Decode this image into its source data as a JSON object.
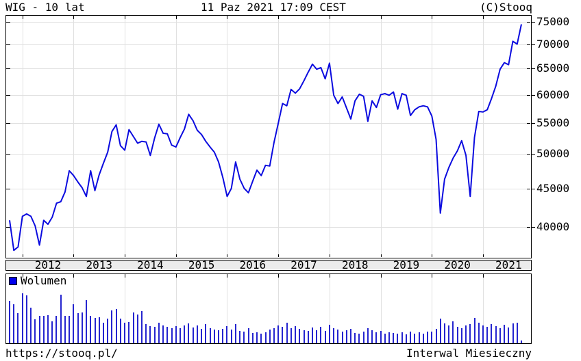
{
  "header": {
    "title": "WIG - 10 lat",
    "datetime": "11 Paz 2021 17:09 CEST",
    "copyright": "(C)Stooq"
  },
  "footer": {
    "url": "https://stooq.pl/",
    "interval": "Interwal Miesieczny"
  },
  "colors": {
    "line": "#0b0bdf",
    "bar": "#2424cf",
    "grid": "#e0e0e0",
    "strip_bg": "#ebebeb",
    "legend_square": "#0000ee",
    "border": "#000000"
  },
  "chart_data": {
    "type": "line",
    "title": "WIG - 10 lat",
    "subtitle": "11 Paz 2021 17:09 CEST",
    "y_scale": "log",
    "ylabel": "",
    "xlabel": "",
    "y_ticks": [
      75000,
      70000,
      65000,
      60000,
      55000,
      50000,
      45000,
      40000
    ],
    "x_years": [
      2012,
      2013,
      2014,
      2015,
      2016,
      2017,
      2018,
      2019,
      2020,
      2021
    ],
    "series_name": "WIG",
    "start_month": "2011-10",
    "interval": "monthly",
    "values": [
      40800,
      37200,
      37600,
      41300,
      41600,
      41300,
      40100,
      37800,
      40800,
      40300,
      41200,
      43000,
      43200,
      44500,
      47500,
      46800,
      45900,
      45100,
      43900,
      47500,
      44700,
      46900,
      48600,
      50300,
      53600,
      54700,
      51300,
      50600,
      53900,
      52800,
      51700,
      52000,
      51900,
      49800,
      52500,
      54800,
      53300,
      53200,
      51400,
      51100,
      52600,
      54000,
      56500,
      55400,
      53800,
      53100,
      52000,
      51100,
      50300,
      48800,
      46500,
      43900,
      45000,
      48800,
      46300,
      45000,
      44400,
      46000,
      47600,
      46800,
      48300,
      48200,
      51800,
      55000,
      58400,
      58000,
      61000,
      60300,
      61100,
      62600,
      64300,
      65900,
      64900,
      65200,
      63000,
      66100,
      59900,
      58400,
      59600,
      57600,
      55700,
      58900,
      60100,
      59700,
      55300,
      58900,
      57700,
      60000,
      60200,
      59900,
      60500,
      57400,
      60200,
      59900,
      56300,
      57300,
      57800,
      58000,
      57800,
      56200,
      52300,
      41700,
      46300,
      48000,
      49400,
      50500,
      52100,
      49800,
      43900,
      52600,
      57000,
      56900,
      57300,
      59300,
      61600,
      64900,
      66200,
      65800,
      70700,
      70100,
      74500
    ],
    "volume": {
      "label": "Wolumen",
      "unit": "relative",
      "values": [
        62,
        57,
        44,
        73,
        70,
        52,
        35,
        40,
        40,
        41,
        32,
        40,
        71,
        40,
        40,
        57,
        44,
        45,
        63,
        40,
        37,
        38,
        30,
        36,
        48,
        50,
        36,
        30,
        31,
        45,
        42,
        47,
        28,
        25,
        24,
        30,
        26,
        24,
        22,
        25,
        22,
        26,
        29,
        23,
        26,
        21,
        28,
        22,
        20,
        19,
        21,
        25,
        20,
        28,
        18,
        17,
        22,
        15,
        16,
        14,
        16,
        20,
        22,
        26,
        24,
        30,
        22,
        25,
        21,
        19,
        18,
        23,
        19,
        24,
        18,
        27,
        22,
        20,
        17,
        19,
        21,
        15,
        14,
        17,
        22,
        19,
        16,
        18,
        14,
        16,
        15,
        14,
        16,
        13,
        17,
        14,
        16,
        14,
        17,
        17,
        21,
        36,
        29,
        26,
        32,
        24,
        22,
        26,
        28,
        37,
        30,
        26,
        24,
        28,
        25,
        22,
        27,
        23,
        29,
        30,
        4
      ]
    }
  }
}
